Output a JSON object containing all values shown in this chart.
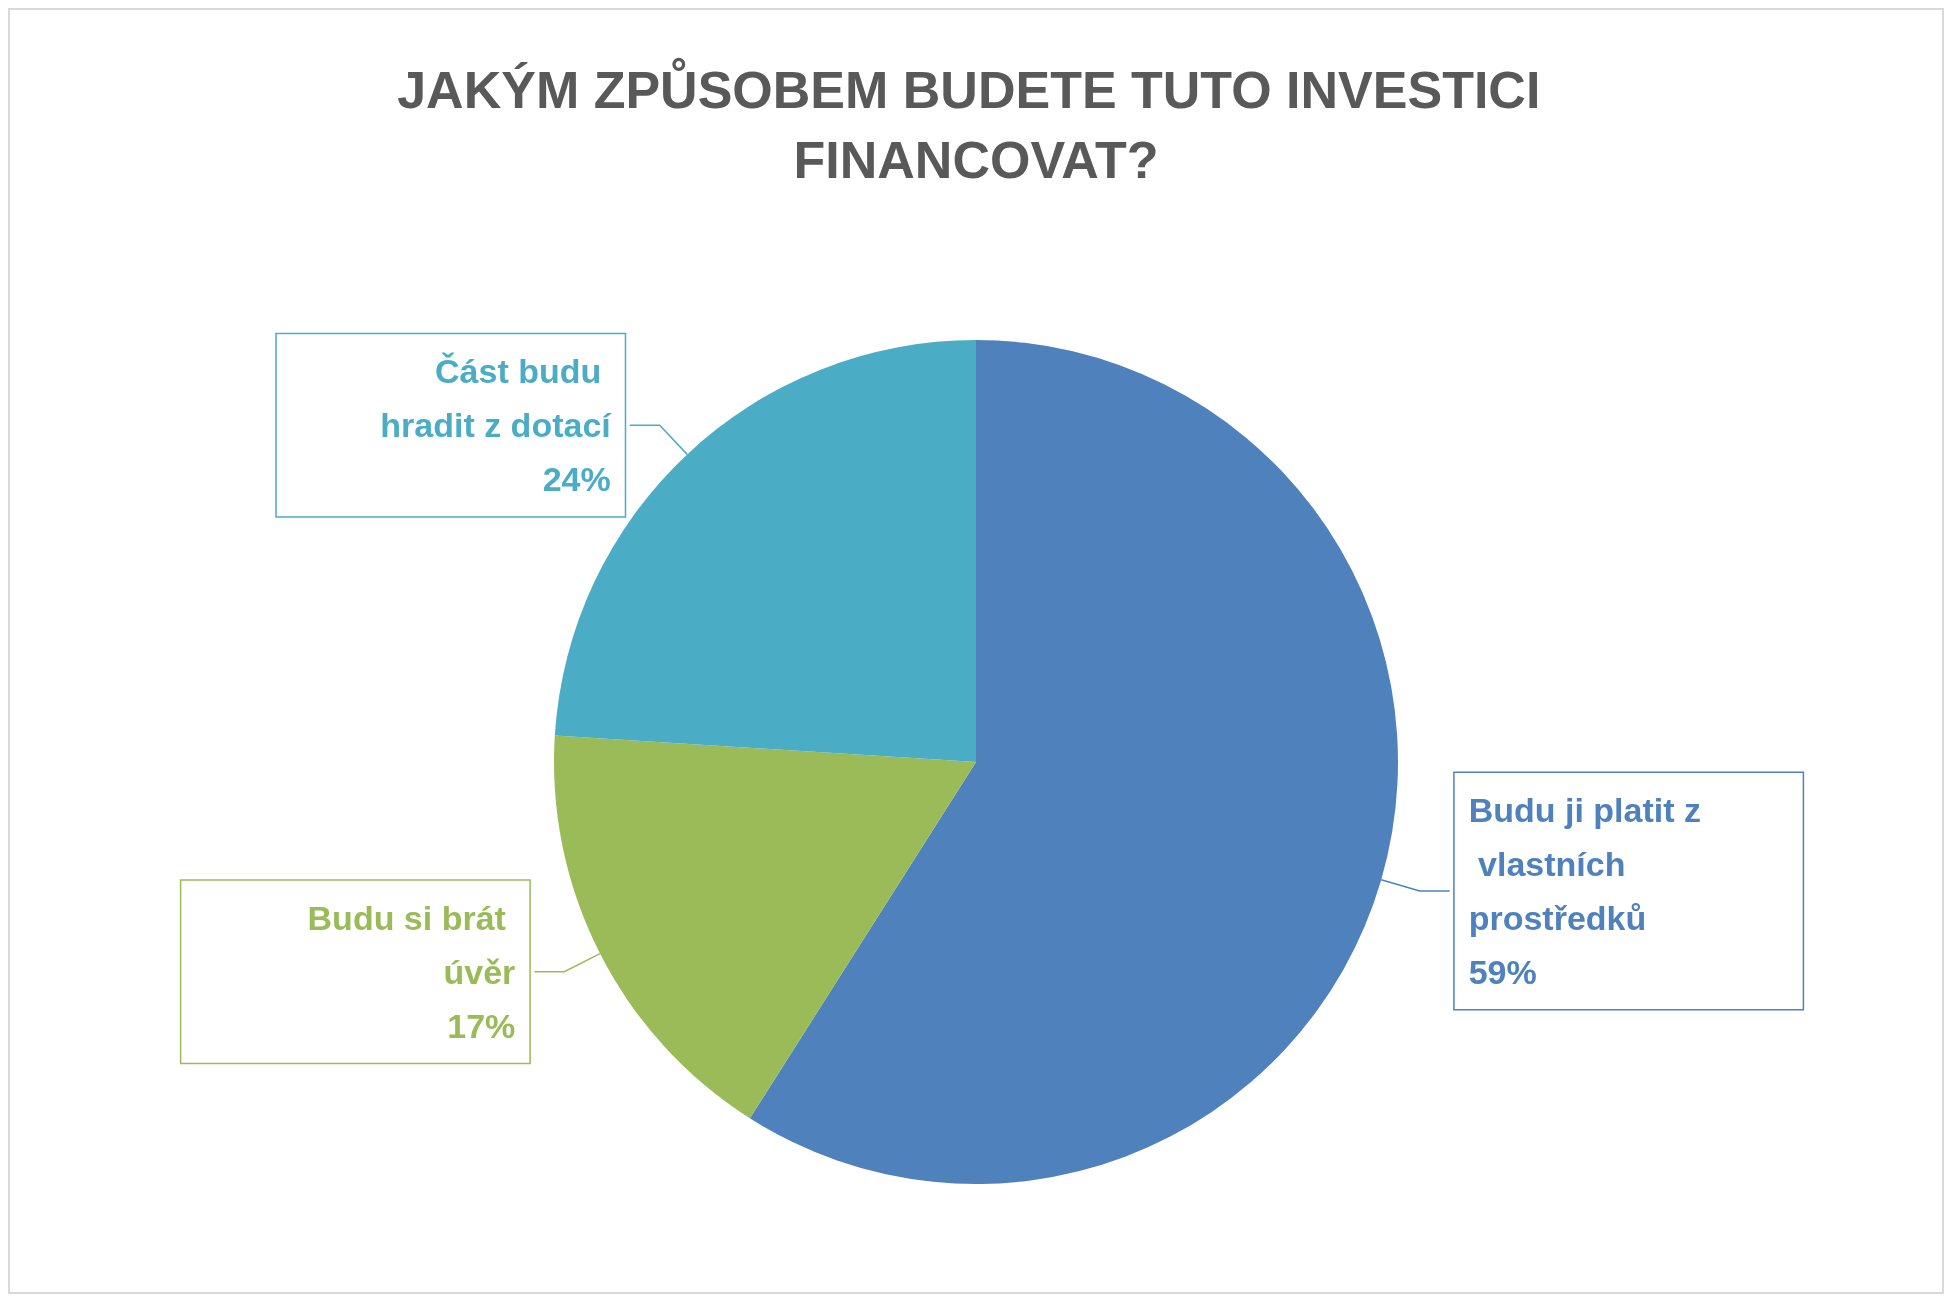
{
  "chart_data": {
    "type": "pie",
    "title": "JAKÝM ZPŮSOBEM BUDETE TUTO INVESTICI FINANCOVAT?",
    "categories": [
      "Budu ji platit z vlastních prostředků",
      "Budu si brát úvěr",
      "Část budu hradit z dotací"
    ],
    "values": [
      59,
      17,
      24
    ],
    "value_labels": [
      "59%",
      "17%",
      "24%"
    ],
    "colors": [
      "#4f81bd",
      "#9bbb59",
      "#4bacc6"
    ],
    "legend": false
  }
}
